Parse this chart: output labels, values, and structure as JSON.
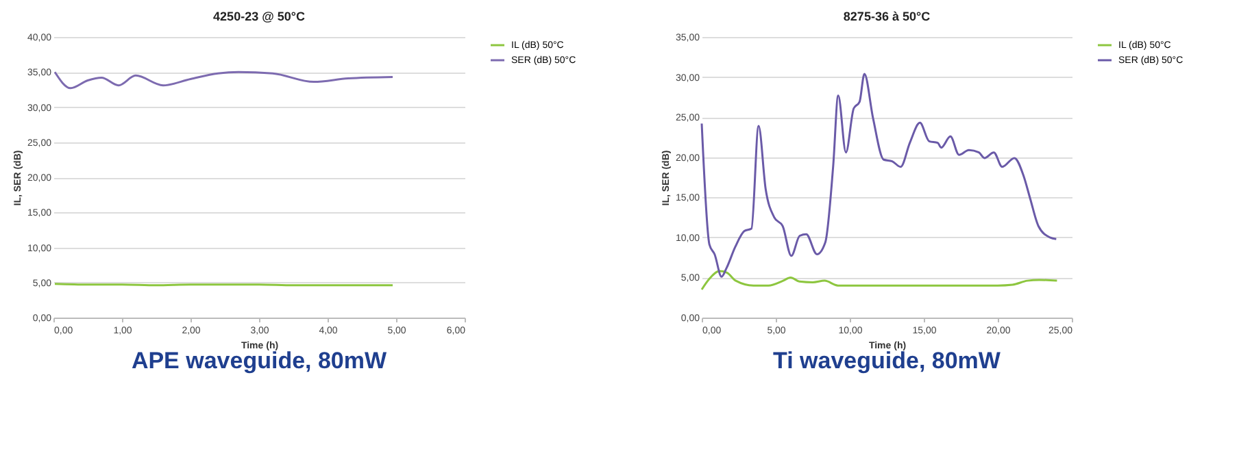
{
  "chart_data": [
    {
      "type": "line",
      "title": "4250-23 @ 50°C",
      "xlabel": "Time (h)",
      "ylabel": "IL, SER (dB)",
      "annotations": [
        "APE waveguide, 80mW"
      ],
      "xlim": [
        0,
        6
      ],
      "xticks": [
        {
          "value": 0,
          "label": "0,00"
        },
        {
          "value": 1,
          "label": "1,00"
        },
        {
          "value": 2,
          "label": "2,00"
        },
        {
          "value": 3,
          "label": "3,00"
        },
        {
          "value": 4,
          "label": "4,00"
        },
        {
          "value": 5,
          "label": "5,00"
        },
        {
          "value": 6,
          "label": "6,00"
        }
      ],
      "ylim": [
        0,
        40
      ],
      "yticks": [
        {
          "value": 0,
          "label": "0,00"
        },
        {
          "value": 5,
          "label": "5,00"
        },
        {
          "value": 10,
          "label": "10,00"
        },
        {
          "value": 15,
          "label": "15,00"
        },
        {
          "value": 20,
          "label": "20,00"
        },
        {
          "value": 25,
          "label": "25,00"
        },
        {
          "value": 30,
          "label": "30,00"
        },
        {
          "value": 35,
          "label": "35,00"
        },
        {
          "value": 40,
          "label": "40,00"
        }
      ],
      "grid": "y",
      "legend": "right",
      "series": [
        {
          "name": "IL (dB) 50°C",
          "color": "#8dc63f",
          "x": [
            0.02,
            0.5,
            1,
            1.5,
            2,
            2.5,
            3,
            3.5,
            4,
            4.5,
            4.95
          ],
          "values": [
            4.8,
            4.7,
            4.7,
            4.6,
            4.7,
            4.7,
            4.7,
            4.6,
            4.6,
            4.6,
            4.6
          ]
        },
        {
          "name": "SER (dB) 50°C",
          "color": "#7d6bb0",
          "x": [
            0.02,
            0.25,
            0.5,
            0.7,
            0.95,
            1.2,
            1.6,
            2.0,
            2.4,
            2.7,
            3.2,
            3.8,
            4.3,
            4.95
          ],
          "values": [
            35,
            32.7,
            33.8,
            34.2,
            33.1,
            34.5,
            33.1,
            34,
            34.8,
            35,
            34.8,
            33.6,
            34.1,
            34.3
          ]
        }
      ]
    },
    {
      "type": "line",
      "title": "8275-36 à 50°C",
      "xlabel": "Time (h)",
      "ylabel": "IL, SER (dB)",
      "annotations": [
        "Ti waveguide, 80mW"
      ],
      "xlim": [
        0,
        25
      ],
      "xticks": [
        {
          "value": 0,
          "label": "0,00"
        },
        {
          "value": 5,
          "label": "5,00"
        },
        {
          "value": 10,
          "label": "10,00"
        },
        {
          "value": 15,
          "label": "15,00"
        },
        {
          "value": 20,
          "label": "20,00"
        },
        {
          "value": 25,
          "label": "25,00"
        }
      ],
      "ylim": [
        0,
        35
      ],
      "yticks": [
        {
          "value": 0,
          "label": "0,00"
        },
        {
          "value": 5,
          "label": "5,00"
        },
        {
          "value": 10,
          "label": "10,00"
        },
        {
          "value": 15,
          "label": "15,00"
        },
        {
          "value": 20,
          "label": "20,00"
        },
        {
          "value": 25,
          "label": "25,00"
        },
        {
          "value": 30,
          "label": "30,00"
        },
        {
          "value": 35,
          "label": "35,00"
        }
      ],
      "grid": "y",
      "legend": "right",
      "series": [
        {
          "name": "IL (dB) 50°C",
          "color": "#8dc63f",
          "x": [
            0,
            0.5,
            1.2,
            1.7,
            2.3,
            3.5,
            4.5,
            5.5,
            6,
            6.6,
            7.5,
            8.3,
            9.2,
            12,
            16,
            20,
            21,
            22,
            22.8,
            24
          ],
          "values": [
            3.5,
            4.8,
            5.8,
            5.6,
            4.6,
            4,
            4,
            4.6,
            5,
            4.5,
            4.4,
            4.6,
            4,
            4,
            4,
            4,
            4.1,
            4.6,
            4.7,
            4.6
          ]
        },
        {
          "name": "SER (dB) 50°C",
          "color": "#6a5aa8",
          "x": [
            0,
            0.52,
            0.87,
            1.34,
            1.68,
            2.26,
            2.88,
            3.36,
            3.84,
            4.32,
            4.9,
            5.47,
            6.05,
            6.62,
            7.06,
            7.78,
            8.35,
            8.88,
            9.22,
            9.74,
            10.27,
            10.66,
            10.99,
            11.57,
            12.29,
            12.86,
            13.44,
            14.06,
            14.74,
            15.36,
            15.94,
            16.18,
            16.8,
            17.38,
            18.05,
            18.72,
            19.1,
            19.73,
            20.3,
            21.12,
            21.74,
            22.18,
            22.75,
            23.52,
            23.95
          ],
          "values": [
            24.2,
            9.1,
            7.9,
            5.1,
            6.2,
            8.8,
            10.8,
            11.1,
            23.9,
            16,
            12.5,
            11.4,
            7.7,
            10.2,
            10.4,
            7.9,
            9.4,
            18.9,
            27.7,
            20.6,
            26.1,
            26.9,
            30.4,
            24.9,
            19.7,
            19.5,
            18.8,
            21.8,
            24.3,
            22,
            21.8,
            21.2,
            22.6,
            20.3,
            20.9,
            20.6,
            19.9,
            20.6,
            18.8,
            19.9,
            17.7,
            14.9,
            11.4,
            10,
            9.8
          ]
        }
      ]
    }
  ]
}
